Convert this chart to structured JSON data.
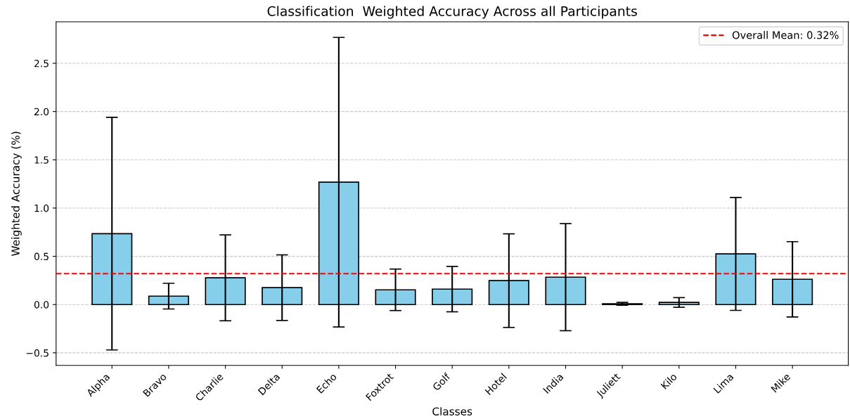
{
  "chart_data": {
    "type": "bar",
    "title": "Classification  Weighted Accuracy Across all Participants",
    "xlabel": "Classes",
    "ylabel": "Weighted Accuracy (%)",
    "categories": [
      "Alpha",
      "Bravo",
      "Charlie",
      "Delta",
      "Echo",
      "Foxtrot",
      "Golf",
      "Hotel",
      "India",
      "Juliett",
      "Kilo",
      "Lima",
      "Mike"
    ],
    "values": [
      0.735,
      0.087,
      0.277,
      0.175,
      1.268,
      0.153,
      0.16,
      0.248,
      0.284,
      0.008,
      0.022,
      0.525,
      0.262
    ],
    "errors": [
      1.205,
      0.133,
      0.445,
      0.34,
      1.5,
      0.215,
      0.235,
      0.485,
      0.555,
      0.015,
      0.05,
      0.585,
      0.39
    ],
    "color": "#87ceeb",
    "ylim": [
      -0.63,
      2.93
    ],
    "yticks": [
      {
        "value": -0.5,
        "label": "−0.5"
      },
      {
        "value": 0,
        "label": "0.0"
      },
      {
        "value": 0.5,
        "label": "0.5"
      },
      {
        "value": 1,
        "label": "1.0"
      },
      {
        "value": 1.5,
        "label": "1.5"
      },
      {
        "value": 2,
        "label": "2.0"
      },
      {
        "value": 2.5,
        "label": "2.5"
      }
    ],
    "ref_lines": [
      {
        "axis": "y",
        "value": 0.32,
        "label": "Overall Mean: 0.32%",
        "color": "#ff0000",
        "line_style": "dashed"
      }
    ],
    "grid": "y",
    "legend": "top right"
  }
}
